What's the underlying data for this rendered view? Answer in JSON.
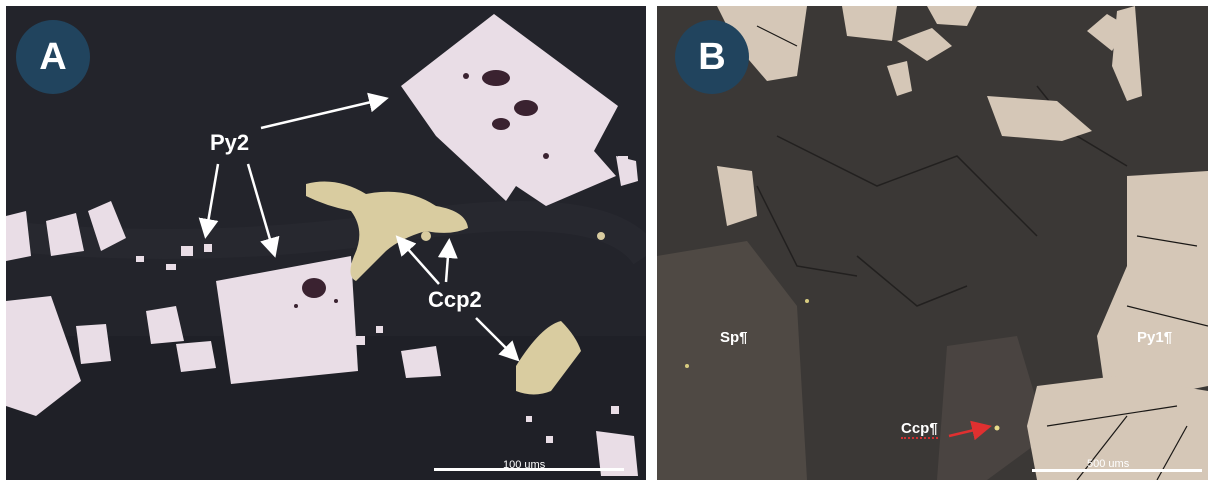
{
  "panels": [
    {
      "badge": "A",
      "labels": {
        "py": "Py2",
        "ccp": "Ccp2"
      },
      "scale": "100 ums"
    },
    {
      "badge": "B",
      "labels": {
        "sp": "Sp¶",
        "py": "Py1¶",
        "ccp": "Ccp¶"
      },
      "scale": "500 ums"
    }
  ],
  "colors": {
    "pyrite": "#e9dde6",
    "chalcopyrite": "#d9cca0",
    "matrix_a": "#23242b",
    "matrix_b": "#3b3836",
    "badge": "#21445e",
    "arrow_b": "#e03030"
  }
}
